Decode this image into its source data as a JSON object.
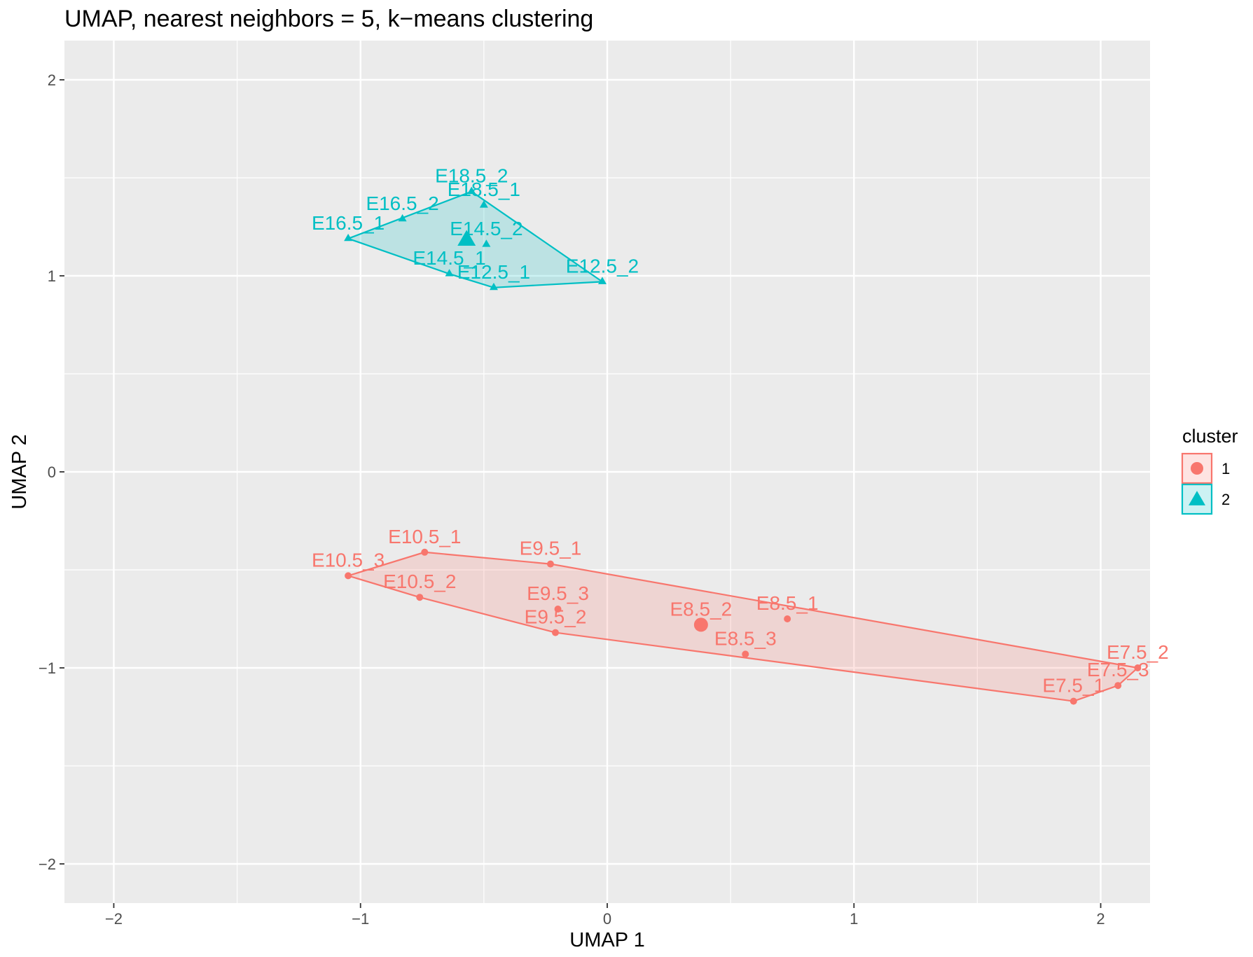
{
  "chart_data": {
    "type": "scatter",
    "title": "UMAP, nearest neighbors = 5, k−means clustering",
    "xlabel": "UMAP 1",
    "ylabel": "UMAP 2",
    "xlim": [
      -2.2,
      2.2
    ],
    "ylim": [
      -2.2,
      2.2
    ],
    "x_ticks": [
      -2,
      -1,
      0,
      1,
      2
    ],
    "y_ticks": [
      -2,
      -1,
      0,
      1,
      2
    ],
    "x_tick_labels": [
      "−2",
      "−1",
      "0",
      "1",
      "2"
    ],
    "y_tick_labels": [
      "−2",
      "−1",
      "0",
      "1",
      "2"
    ],
    "grid": true,
    "legend": {
      "title": "cluster",
      "placement": "right",
      "entries": [
        {
          "label": "1",
          "color": "#F8766D",
          "shape": "circle"
        },
        {
          "label": "2",
          "color": "#00BFC4",
          "shape": "triangle"
        }
      ]
    },
    "series": [
      {
        "name": "1",
        "color": "#F8766D",
        "shape": "circle",
        "centroid": {
          "x": 0.38,
          "y": -0.78
        },
        "hull": [
          "E10.5_3",
          "E10.5_1",
          "E9.5_1",
          "E7.5_2",
          "E7.5_3",
          "E7.5_1",
          "E9.5_2",
          "E10.5_2"
        ],
        "points": [
          {
            "label": "E10.5_1",
            "x": -0.74,
            "y": -0.41
          },
          {
            "label": "E10.5_2",
            "x": -0.76,
            "y": -0.64
          },
          {
            "label": "E10.5_3",
            "x": -1.05,
            "y": -0.53
          },
          {
            "label": "E9.5_1",
            "x": -0.23,
            "y": -0.47
          },
          {
            "label": "E9.5_2",
            "x": -0.21,
            "y": -0.82
          },
          {
            "label": "E9.5_3",
            "x": -0.2,
            "y": -0.7
          },
          {
            "label": "E8.5_1",
            "x": 0.73,
            "y": -0.75
          },
          {
            "label": "E8.5_2",
            "x": 0.38,
            "y": -0.78
          },
          {
            "label": "E8.5_3",
            "x": 0.56,
            "y": -0.93
          },
          {
            "label": "E7.5_1",
            "x": 1.89,
            "y": -1.17
          },
          {
            "label": "E7.5_2",
            "x": 2.15,
            "y": -1.0
          },
          {
            "label": "E7.5_3",
            "x": 2.07,
            "y": -1.09
          }
        ]
      },
      {
        "name": "2",
        "color": "#00BFC4",
        "shape": "triangle",
        "centroid": {
          "x": -0.57,
          "y": 1.18
        },
        "hull": [
          "E16.5_1",
          "E18.5_2",
          "E12.5_2",
          "E12.5_1",
          "E14.5_1"
        ],
        "points": [
          {
            "label": "E18.5_2",
            "x": -0.55,
            "y": 1.43
          },
          {
            "label": "E18.5_1",
            "x": -0.5,
            "y": 1.36
          },
          {
            "label": "E16.5_2",
            "x": -0.83,
            "y": 1.29
          },
          {
            "label": "E16.5_1",
            "x": -1.05,
            "y": 1.19
          },
          {
            "label": "E14.5_2",
            "x": -0.49,
            "y": 1.16
          },
          {
            "label": "E14.5_1",
            "x": -0.64,
            "y": 1.01
          },
          {
            "label": "E12.5_1",
            "x": -0.46,
            "y": 0.94
          },
          {
            "label": "E12.5_2",
            "x": -0.02,
            "y": 0.97
          }
        ]
      }
    ]
  }
}
